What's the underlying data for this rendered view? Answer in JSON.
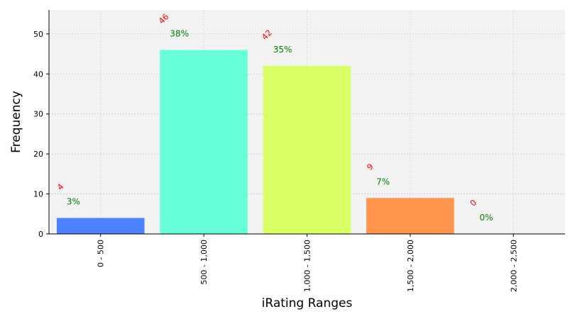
{
  "chart_data": {
    "type": "bar",
    "categories": [
      "0 - 500",
      "500 - 1,000",
      "1,000 - 1,500",
      "1,500 - 2,000",
      "2,000 - 2,500"
    ],
    "values": [
      4,
      46,
      42,
      9,
      0
    ],
    "percent_labels": [
      "3%",
      "38%",
      "35%",
      "7%",
      "0%"
    ],
    "count_labels": [
      "4",
      "46",
      "42",
      "9",
      "0"
    ],
    "bar_colors": [
      "#4d82ff",
      "#66ffd9",
      "#d9ff66",
      "#ff944d",
      "#ff4d4d"
    ],
    "count_label_color": "#ff0000",
    "percent_label_color": "#008000",
    "plot_background": "#f2f2f2",
    "title": "",
    "xlabel": "iRating Ranges",
    "ylabel": "Frequency",
    "ylim": [
      0,
      56
    ],
    "yticks": [
      0,
      10,
      20,
      30,
      40,
      50
    ],
    "grid": true
  }
}
